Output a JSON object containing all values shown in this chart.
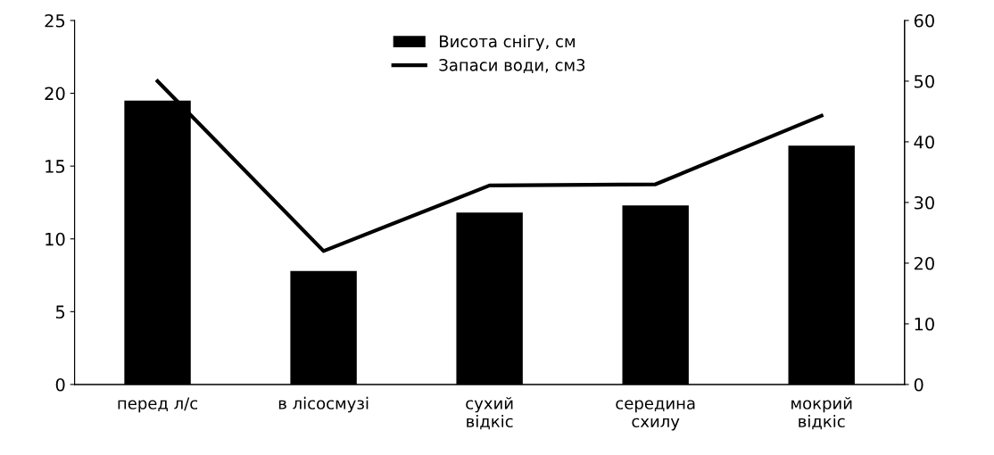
{
  "chart_data": {
    "type": "bar",
    "categories": [
      "перед л/с",
      "в лісосмузі",
      "сухий\nвідкіс",
      "середина\nсхилу",
      "мокрий\nвідкіс"
    ],
    "series": [
      {
        "name": "Висота снігу, см",
        "color": "#000000",
        "values": [
          19.5,
          7.8,
          11.8,
          12.3,
          16.4
        ]
      },
      {
        "name": "Запаси води, см3",
        "type": "line",
        "axis": "y2",
        "color": "#000000",
        "values": [
          50,
          22,
          32.8,
          33,
          44.3
        ]
      }
    ],
    "ylim": [
      0,
      25
    ],
    "yticks": [
      0,
      5,
      10,
      15,
      20,
      25
    ],
    "y2lim": [
      0,
      60
    ],
    "y2ticks": [
      0,
      10,
      20,
      30,
      40,
      50,
      60
    ],
    "grid": false,
    "legend": "top",
    "marker": "none",
    "line_style": "solid"
  }
}
